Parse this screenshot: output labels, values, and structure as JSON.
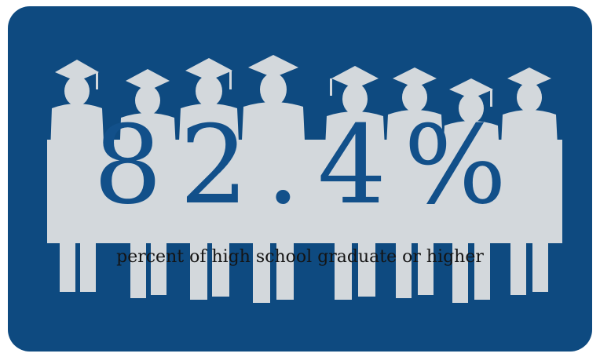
{
  "infographic": {
    "stat_value": "82.4%",
    "caption": "percent of high school graduate or higher"
  },
  "colors": {
    "background": "#0e4a80",
    "silhouette": "#d3d8dc",
    "stat_text": "#12508a",
    "caption_text": "#141414"
  },
  "icons": {
    "graduates": "graduates-silhouette-icon"
  }
}
